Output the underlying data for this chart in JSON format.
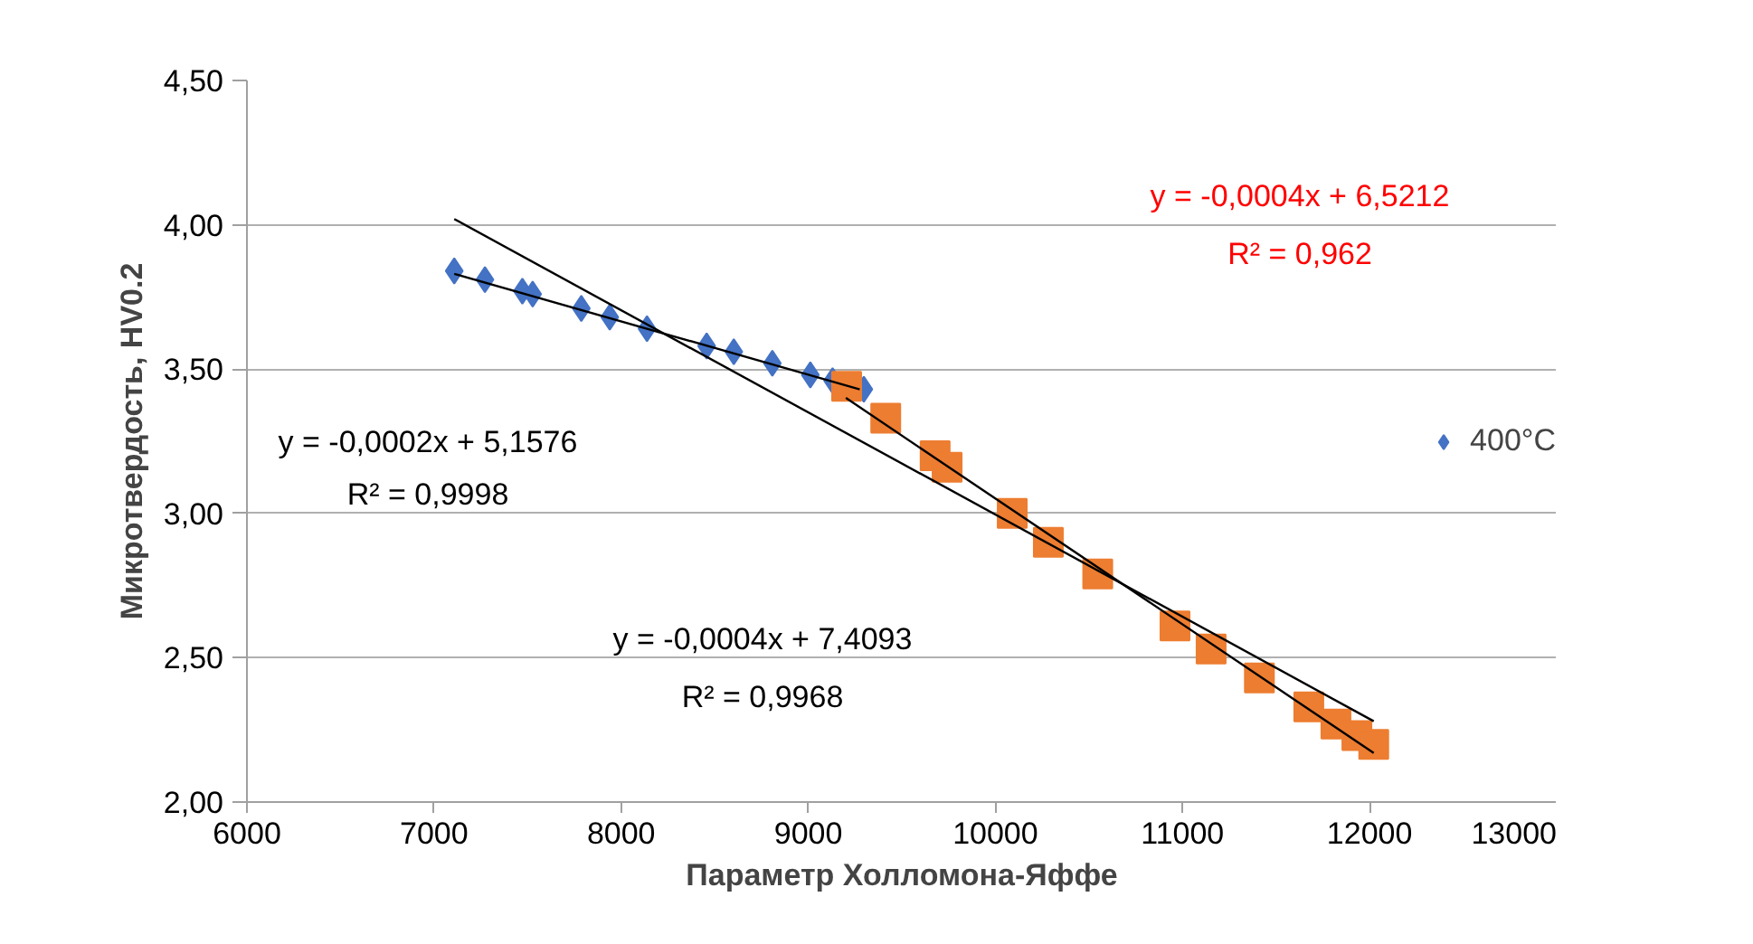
{
  "chart_data": {
    "type": "scatter",
    "xlabel": "Параметр Холломона-Яффе",
    "ylabel": "Микротвердость, HV0.2",
    "xlim": [
      6000,
      13000
    ],
    "ylim": [
      2.0,
      4.5
    ],
    "xticks": [
      6000,
      7000,
      8000,
      9000,
      10000,
      11000,
      12000,
      13000
    ],
    "yticks": [
      {
        "value": 2.0,
        "label": "2,00"
      },
      {
        "value": 2.5,
        "label": "2,50"
      },
      {
        "value": 3.0,
        "label": "3,00"
      },
      {
        "value": 3.5,
        "label": "3,50"
      },
      {
        "value": 4.0,
        "label": "4,00"
      },
      {
        "value": 4.5,
        "label": "4,50"
      }
    ],
    "grid": "y",
    "legend": "right",
    "series": [
      {
        "name": "400°C",
        "color": "#4472c4",
        "marker": "diamond",
        "x": [
          7108,
          7272,
          7472,
          7527,
          7787,
          7939,
          8138,
          8457,
          8602,
          8808,
          9011,
          9130,
          9297
        ],
        "values": [
          3.84,
          3.81,
          3.77,
          3.76,
          3.71,
          3.68,
          3.64,
          3.58,
          3.56,
          3.52,
          3.48,
          3.46,
          3.43
        ]
      },
      {
        "color": "#ed7d31",
        "marker": "square",
        "x": [
          9205,
          9414,
          9678,
          9742,
          10090,
          10283,
          10547,
          10960,
          11153,
          11411,
          11675,
          11820,
          11932,
          12022
        ],
        "values": [
          3.44,
          3.33,
          3.2,
          3.16,
          3.0,
          2.9,
          2.79,
          2.61,
          2.53,
          2.43,
          2.33,
          2.27,
          2.23,
          2.2
        ]
      },
      {
        "type": "line",
        "color": "#000000",
        "x": [
          7108,
          9275
        ],
        "values": [
          3.83,
          3.43
        ]
      },
      {
        "type": "line",
        "color": "#000000",
        "x": [
          7108,
          12022
        ],
        "values": [
          4.02,
          2.28
        ]
      },
      {
        "type": "line",
        "color": "#000000",
        "x": [
          9201,
          12022
        ],
        "values": [
          3.4,
          2.17
        ]
      }
    ],
    "annotations": [
      "y = -0,0002x + 5,1576",
      "R² = 0,9998",
      "y = -0,0004x + 6,5212",
      "R² = 0,962",
      "y = -0,0004x + 7,4093",
      "R² = 0,9968"
    ]
  }
}
